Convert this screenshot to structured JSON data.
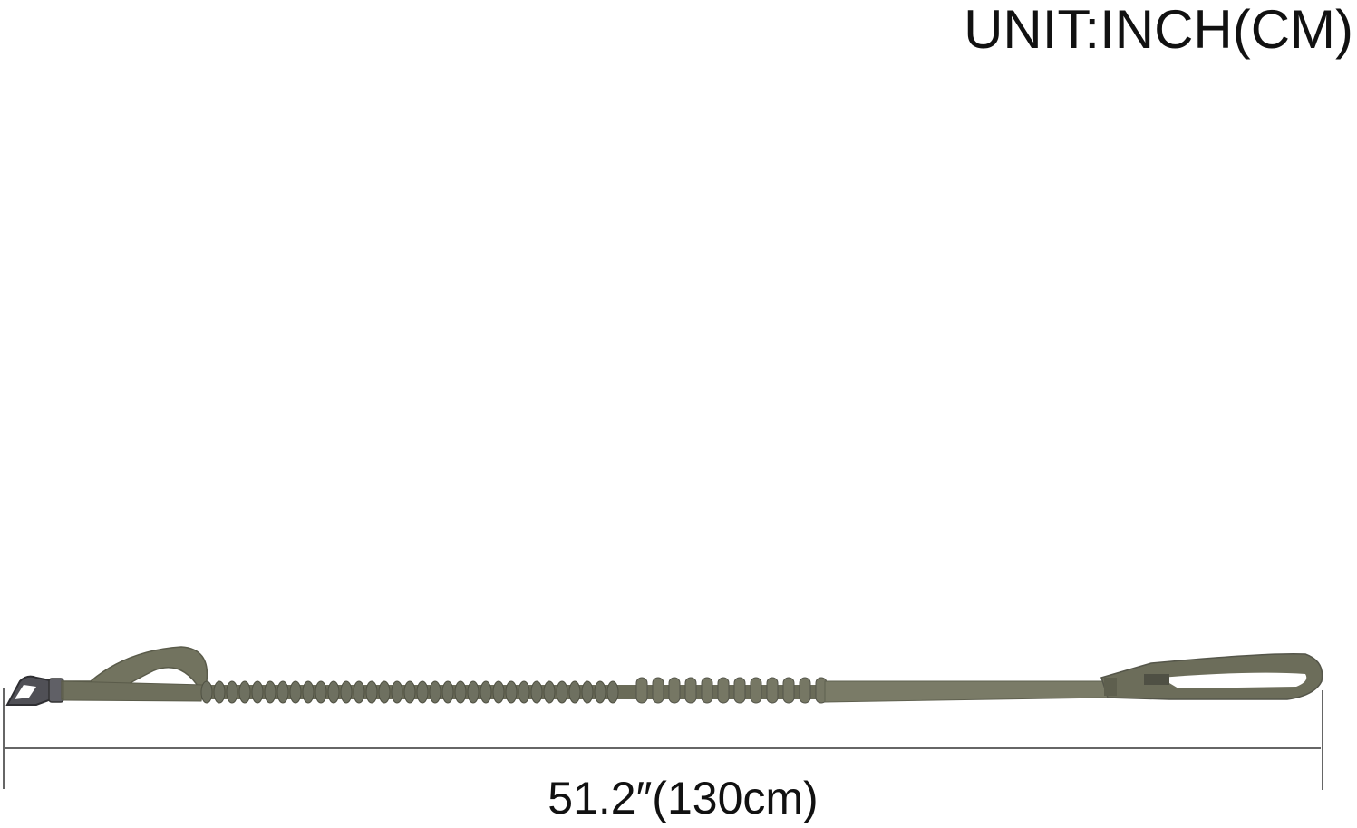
{
  "unit_label": "UNIT:INCH(CM)",
  "dimension_label": "51.2″(130cm)",
  "product": {
    "name_icon": "bungee-dog-leash",
    "color": "#6e7060",
    "clasp_color": "#4a4a4e"
  },
  "dimension": {
    "value_in": 51.2,
    "value_cm": 130
  }
}
